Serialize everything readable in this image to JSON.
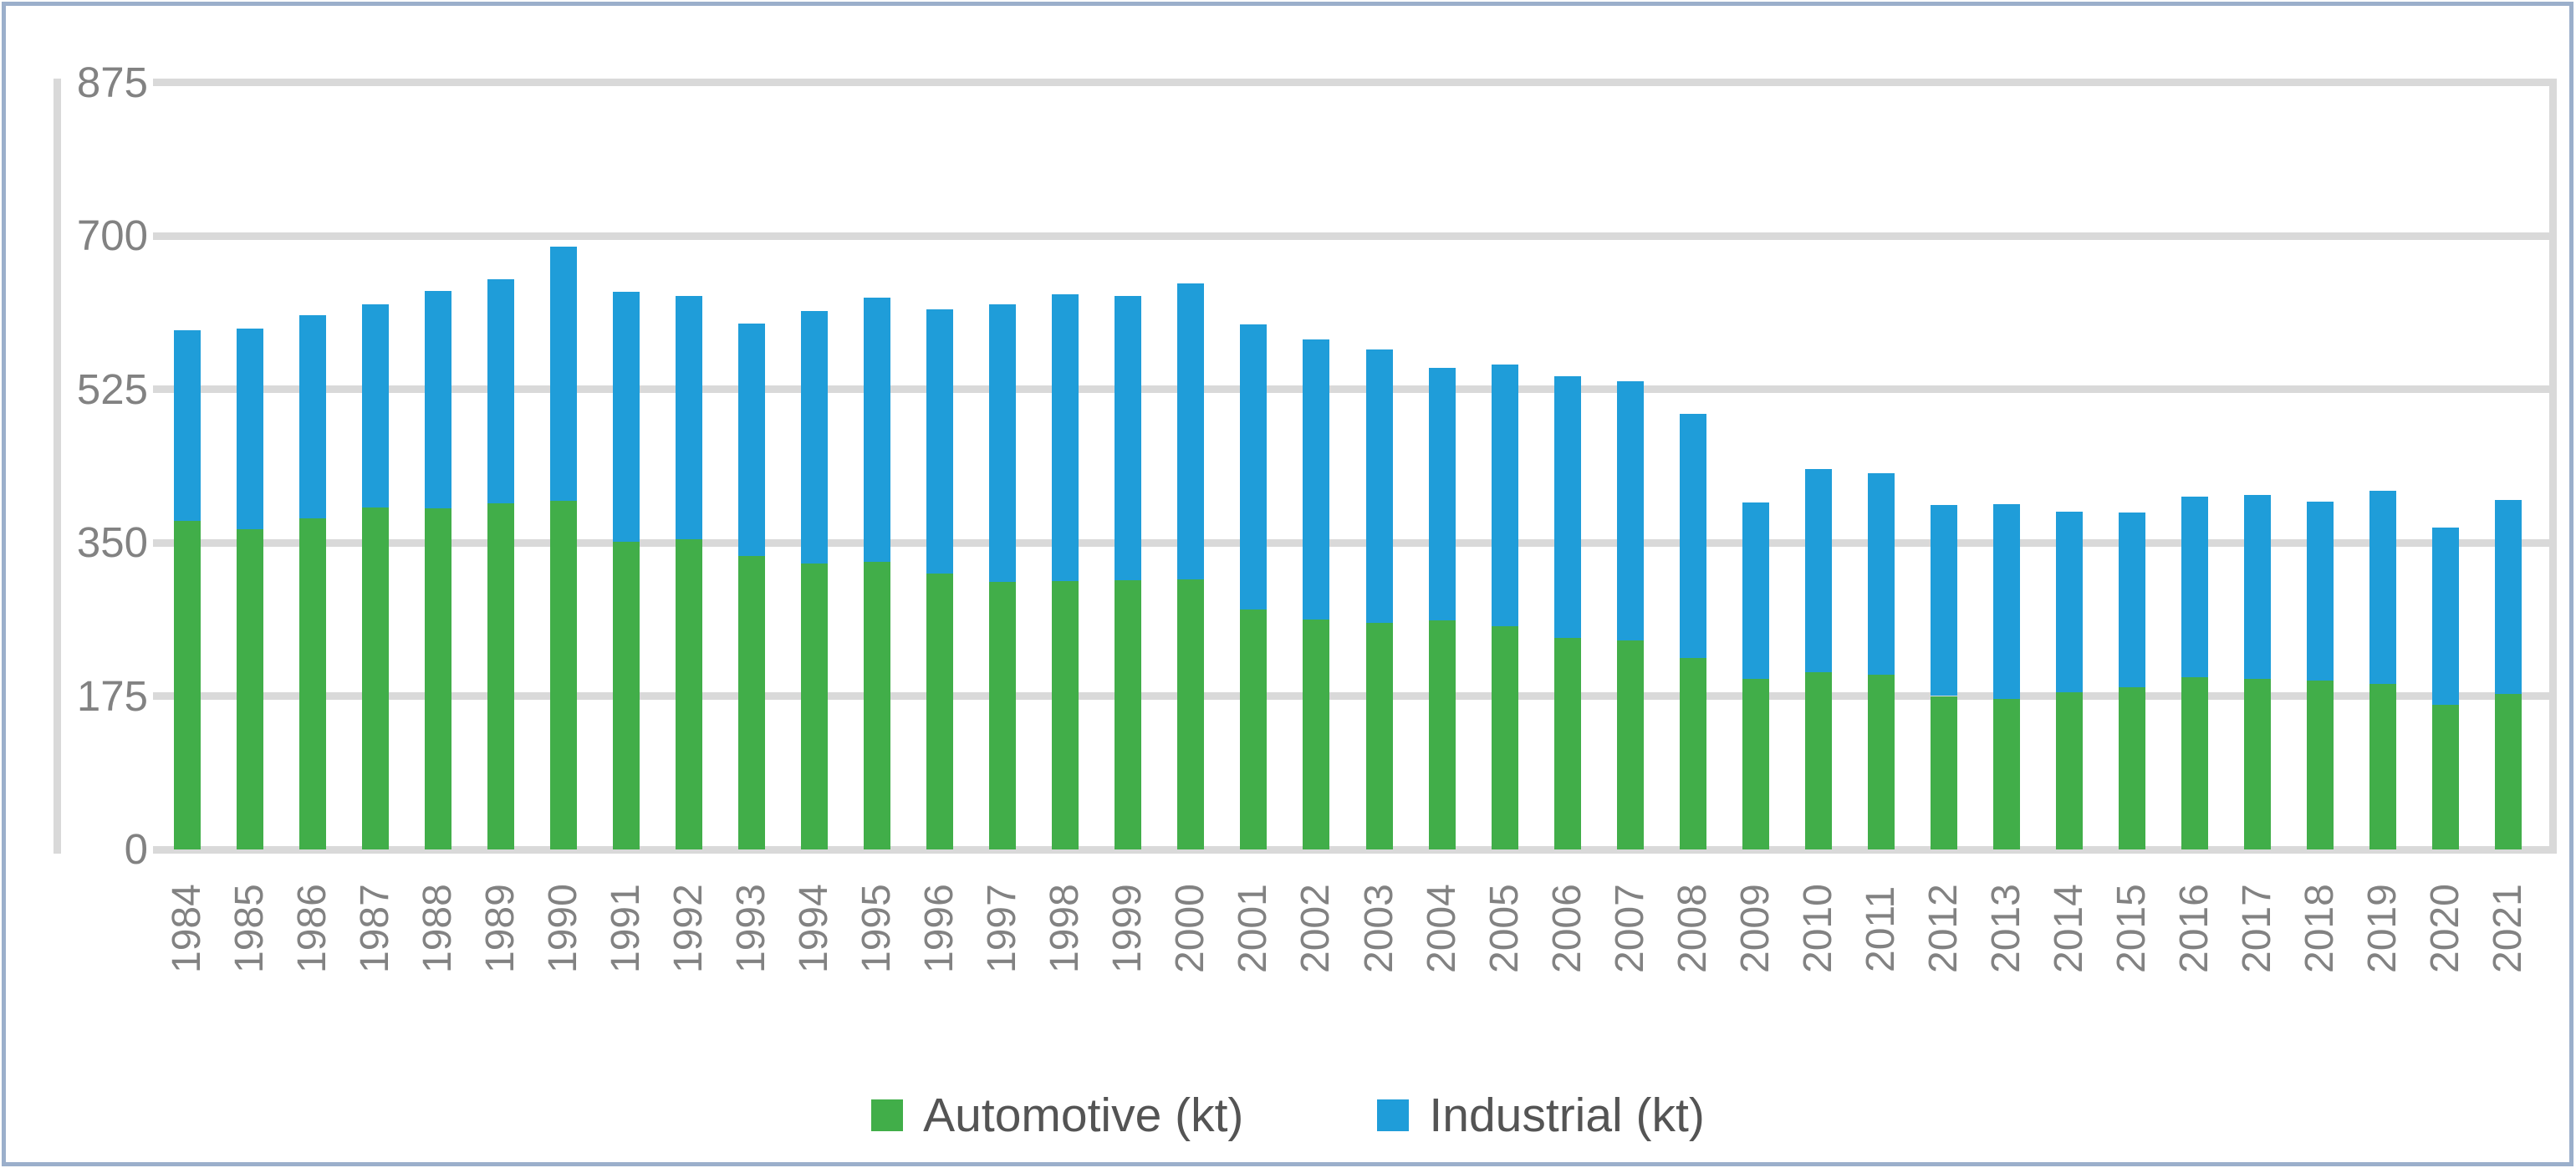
{
  "figure": {
    "kind": "statistical-figure",
    "description": "Stacked column chart of Automotive and Industrial quantities (kt) by year"
  },
  "colors": {
    "automotive": "#41AE49",
    "industrial": "#1F9DD9",
    "gridline": "#D9D9D9",
    "axis_text": "#828282",
    "legend_text": "#545454",
    "figure_border": "#9BAFCB",
    "background": "#FFFFFF"
  },
  "chart_data": {
    "type": "bar",
    "stacked": true,
    "title": "",
    "xlabel": "",
    "ylabel": "",
    "ylim": [
      0,
      875
    ],
    "yticks": [
      0,
      175,
      350,
      525,
      700,
      875
    ],
    "grid": true,
    "legend_position": "bottom",
    "x_label_rotation_degrees": 90,
    "categories": [
      1984,
      1985,
      1986,
      1987,
      1988,
      1989,
      1990,
      1991,
      1992,
      1993,
      1994,
      1995,
      1996,
      1997,
      1998,
      1999,
      2000,
      2001,
      2002,
      2003,
      2004,
      2005,
      2006,
      2007,
      2008,
      2009,
      2010,
      2011,
      2012,
      2013,
      2014,
      2015,
      2016,
      2017,
      2018,
      2019,
      2020,
      2021
    ],
    "series": [
      {
        "name": "Automotive (kt)",
        "color": "#41AE49",
        "values": [
          375,
          365,
          378,
          390,
          389,
          395,
          398,
          351,
          354,
          335,
          326,
          328,
          315,
          305,
          306,
          307,
          308,
          274,
          262,
          258,
          261,
          255,
          241,
          238,
          218,
          195,
          202,
          199,
          175,
          172,
          179,
          185,
          196,
          195,
          193,
          189,
          165,
          177
        ]
      },
      {
        "name": "Industrial (kt)",
        "color": "#1F9DD9",
        "values": [
          217,
          229,
          231,
          232,
          248,
          255,
          290,
          285,
          277,
          265,
          288,
          301,
          301,
          317,
          327,
          324,
          338,
          325,
          320,
          312,
          288,
          298,
          299,
          296,
          279,
          201,
          232,
          230,
          218,
          222,
          206,
          199,
          206,
          209,
          204,
          220,
          202,
          222
        ]
      }
    ]
  }
}
